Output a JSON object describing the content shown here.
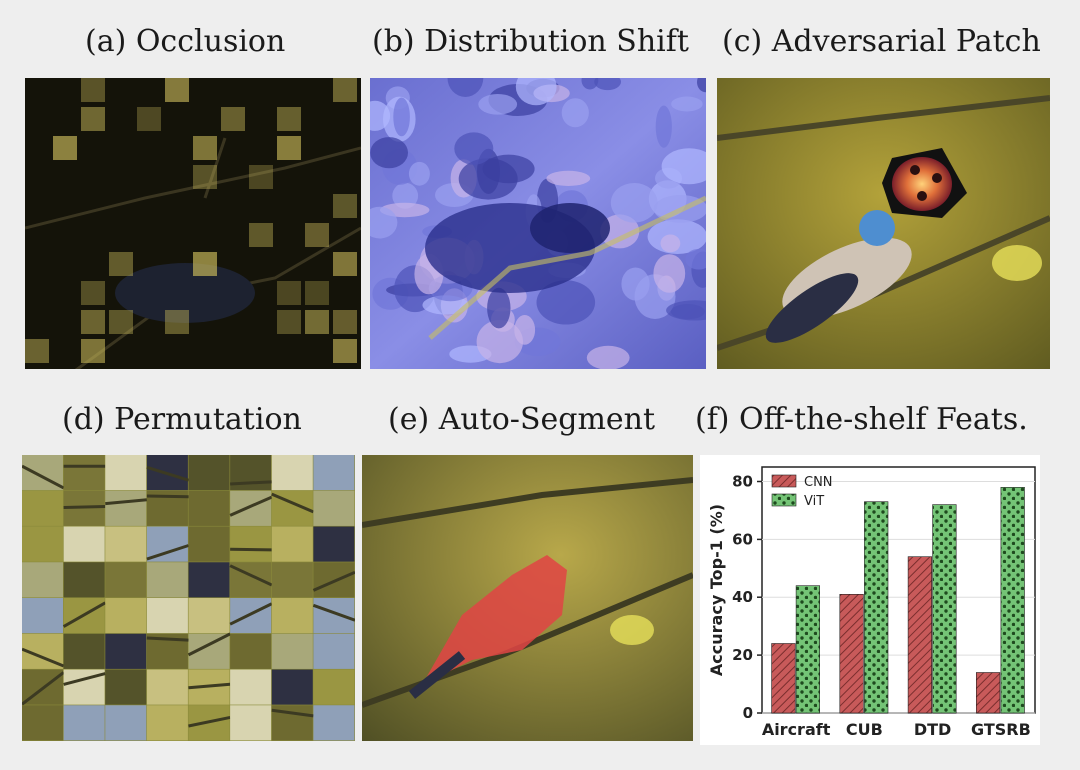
{
  "panels": {
    "a": {
      "title": "(a) Occlusion"
    },
    "b": {
      "title": "(b) Distribution Shift"
    },
    "c": {
      "title": "(c) Adversarial Patch"
    },
    "d": {
      "title": "(d) Permutation"
    },
    "e": {
      "title": "(e) Auto-Segment"
    },
    "f": {
      "title": "(f) Off-the-shelf Feats."
    }
  },
  "colors": {
    "cnn": "#c85a5a",
    "vit": "#74c476",
    "background": "#eeeeee"
  },
  "chart_data": {
    "type": "bar",
    "categories": [
      "Aircraft",
      "CUB",
      "DTD",
      "GTSRB"
    ],
    "series": [
      {
        "name": "CNN",
        "values": [
          24,
          41,
          54,
          14
        ]
      },
      {
        "name": "ViT",
        "values": [
          44,
          73,
          72,
          78
        ]
      }
    ],
    "title": "",
    "xlabel": "",
    "ylabel": "Accuracy Top-1 (%)",
    "ylim": [
      0,
      85
    ],
    "yticks": [
      0,
      20,
      40,
      60,
      80
    ],
    "legend_position": "top-left",
    "grid": true
  }
}
